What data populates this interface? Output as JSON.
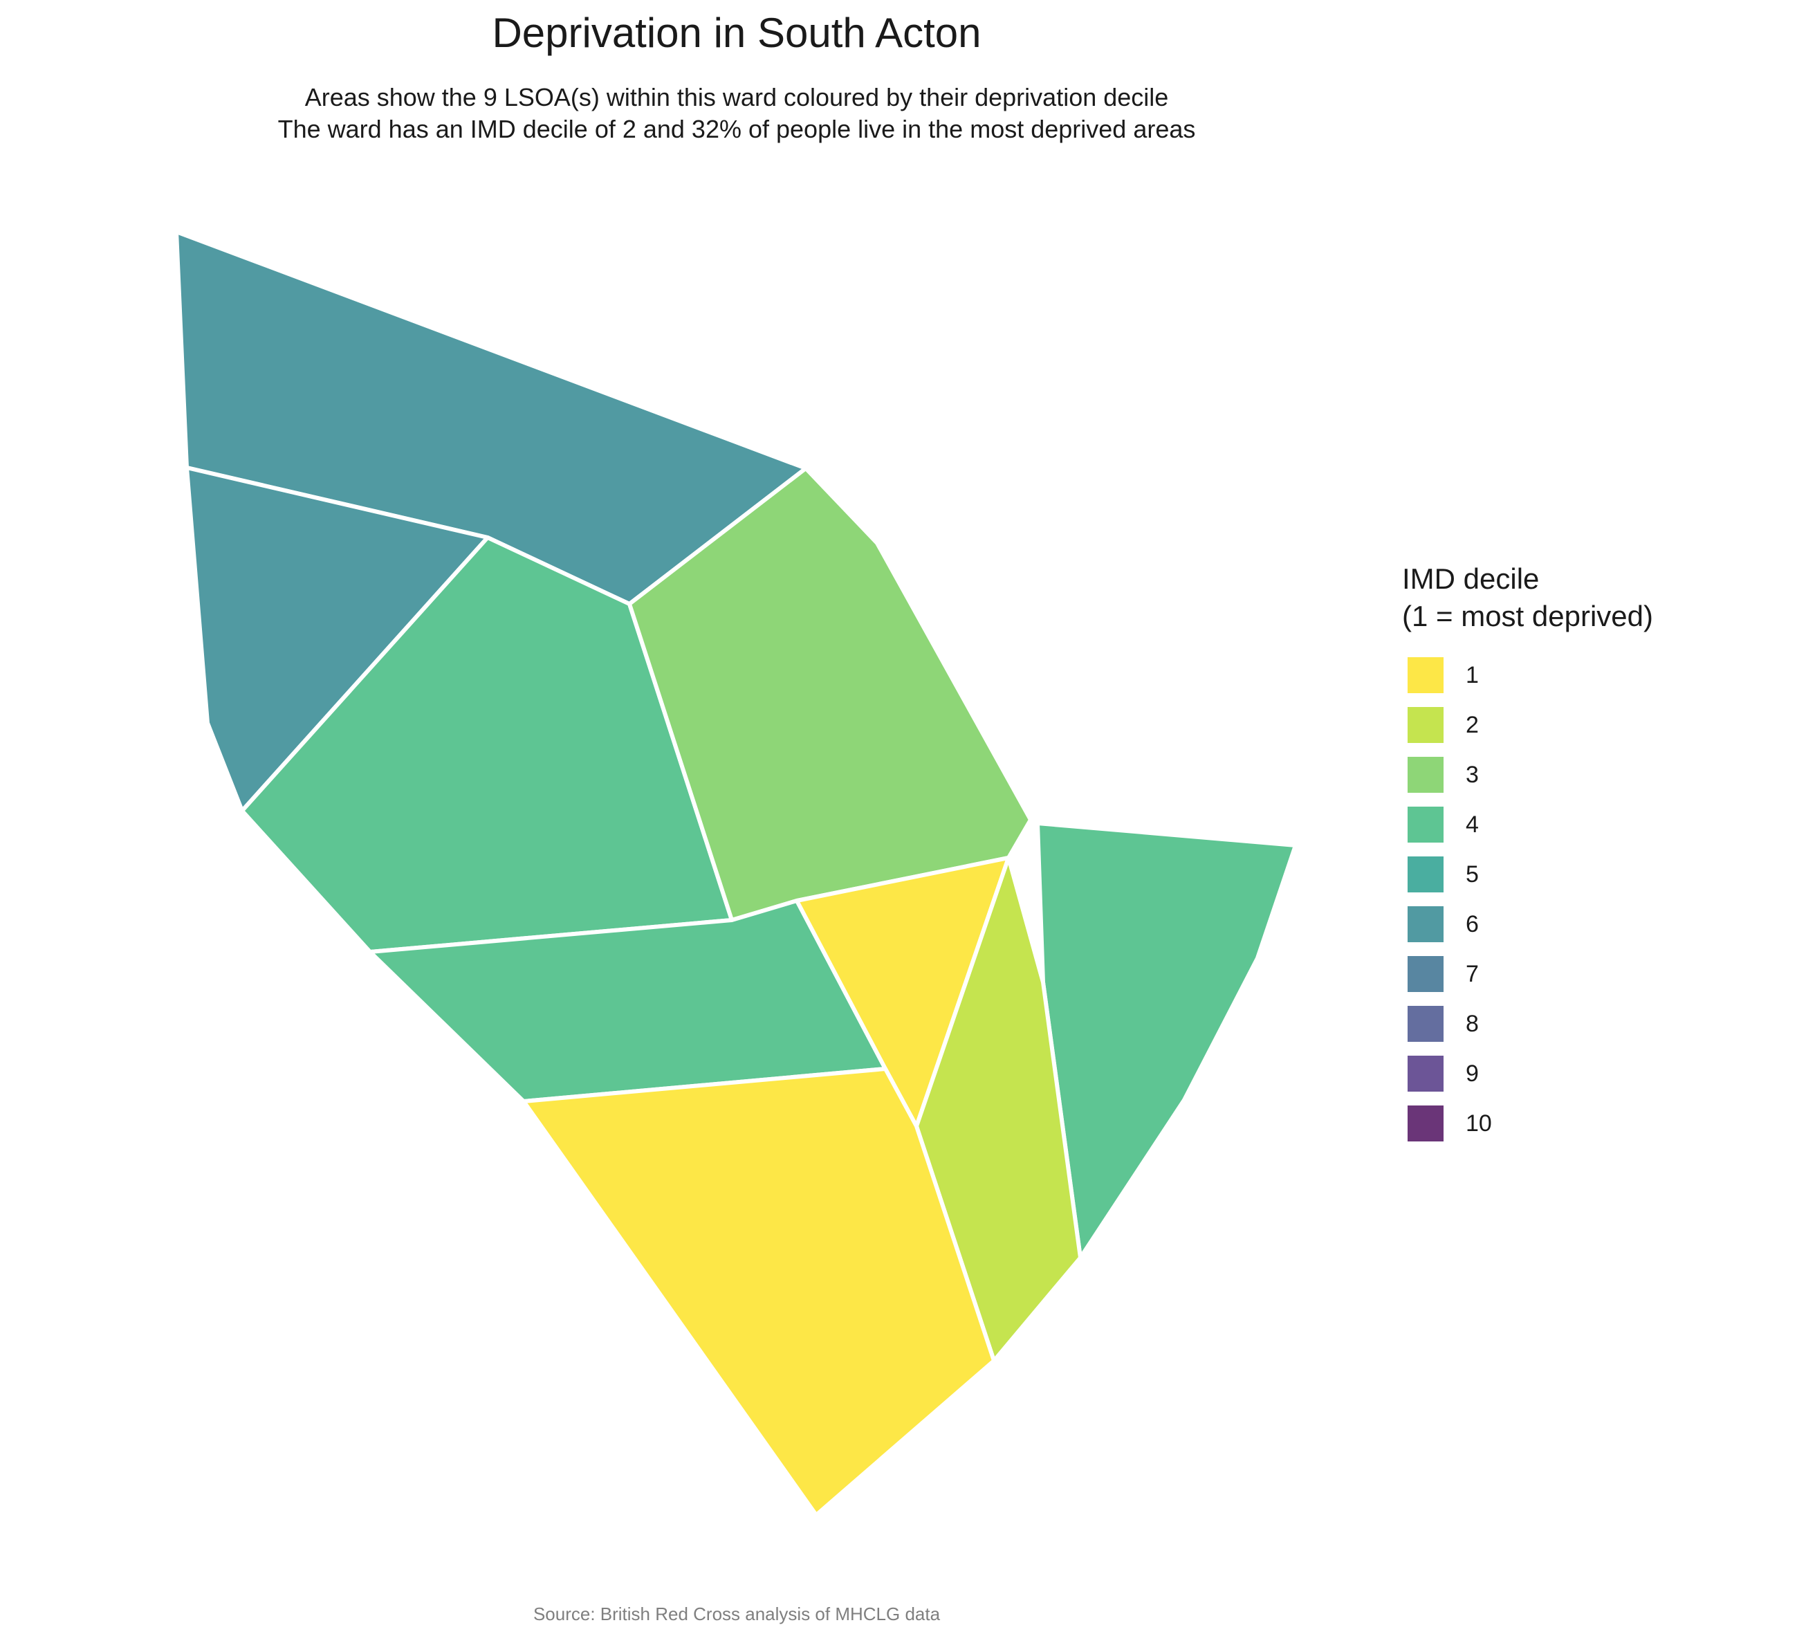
{
  "title": "Deprivation in South Acton",
  "subtitle": {
    "line1": "Areas show the 9 LSOA(s) within this ward coloured by their deprivation decile",
    "line2": "The ward has an IMD decile of 2 and 32% of people live in the most deprived areas"
  },
  "legend": {
    "title_line1": "IMD decile",
    "title_line2": "(1 = most deprived)",
    "placement": "right",
    "items": [
      {
        "label": "1",
        "color": "#FDE747"
      },
      {
        "label": "2",
        "color": "#C5E44F"
      },
      {
        "label": "3",
        "color": "#8ED677"
      },
      {
        "label": "4",
        "color": "#5EC593"
      },
      {
        "label": "5",
        "color": "#4AAEA0"
      },
      {
        "label": "6",
        "color": "#519AA2"
      },
      {
        "label": "7",
        "color": "#5886A1"
      },
      {
        "label": "8",
        "color": "#646E9F"
      },
      {
        "label": "9",
        "color": "#6C5597"
      },
      {
        "label": "10",
        "color": "#6A3578"
      }
    ]
  },
  "map_data": {
    "ward": "South Acton",
    "lsoa_count": 9,
    "areas": [
      {
        "name": "north-west",
        "decile": 6
      },
      {
        "name": "west",
        "decile": 6
      },
      {
        "name": "centre-west",
        "decile": 4
      },
      {
        "name": "centre-north",
        "decile": 3
      },
      {
        "name": "centre-south",
        "decile": 4
      },
      {
        "name": "centre-east-small",
        "decile": 1
      },
      {
        "name": "east",
        "decile": 4
      },
      {
        "name": "south-east",
        "decile": 2
      },
      {
        "name": "south",
        "decile": 1
      }
    ]
  },
  "caption": "Source: British Red Cross analysis of MHCLG data"
}
